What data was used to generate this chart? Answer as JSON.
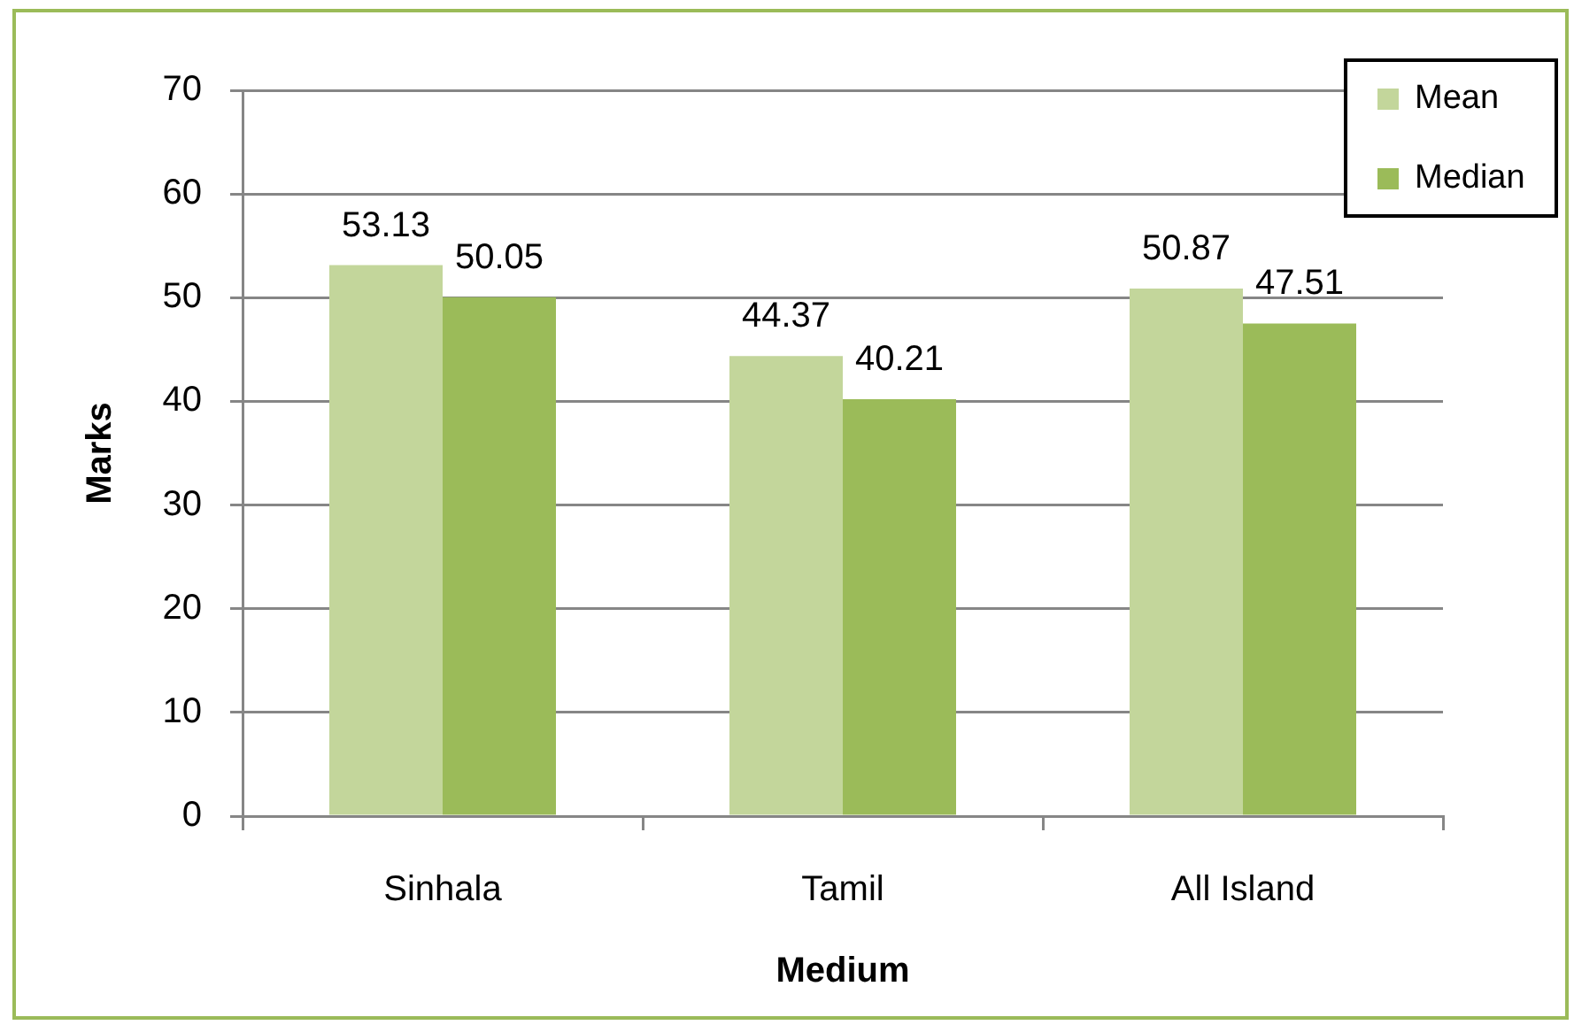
{
  "chart_data": {
    "type": "bar",
    "categories": [
      "Sinhala",
      "Tamil",
      "All Island"
    ],
    "series": [
      {
        "name": "Mean",
        "color": "#c3d69b",
        "values": [
          53.13,
          44.37,
          50.87
        ]
      },
      {
        "name": "Median",
        "color": "#9bbb59",
        "values": [
          50.05,
          40.21,
          47.51
        ]
      }
    ],
    "xlabel": "Medium",
    "ylabel": "Marks",
    "ylim": [
      0,
      70
    ],
    "yticks": [
      0,
      10,
      20,
      30,
      40,
      50,
      60,
      70
    ],
    "grid": "y",
    "legend": "top right",
    "data_labels": true
  }
}
